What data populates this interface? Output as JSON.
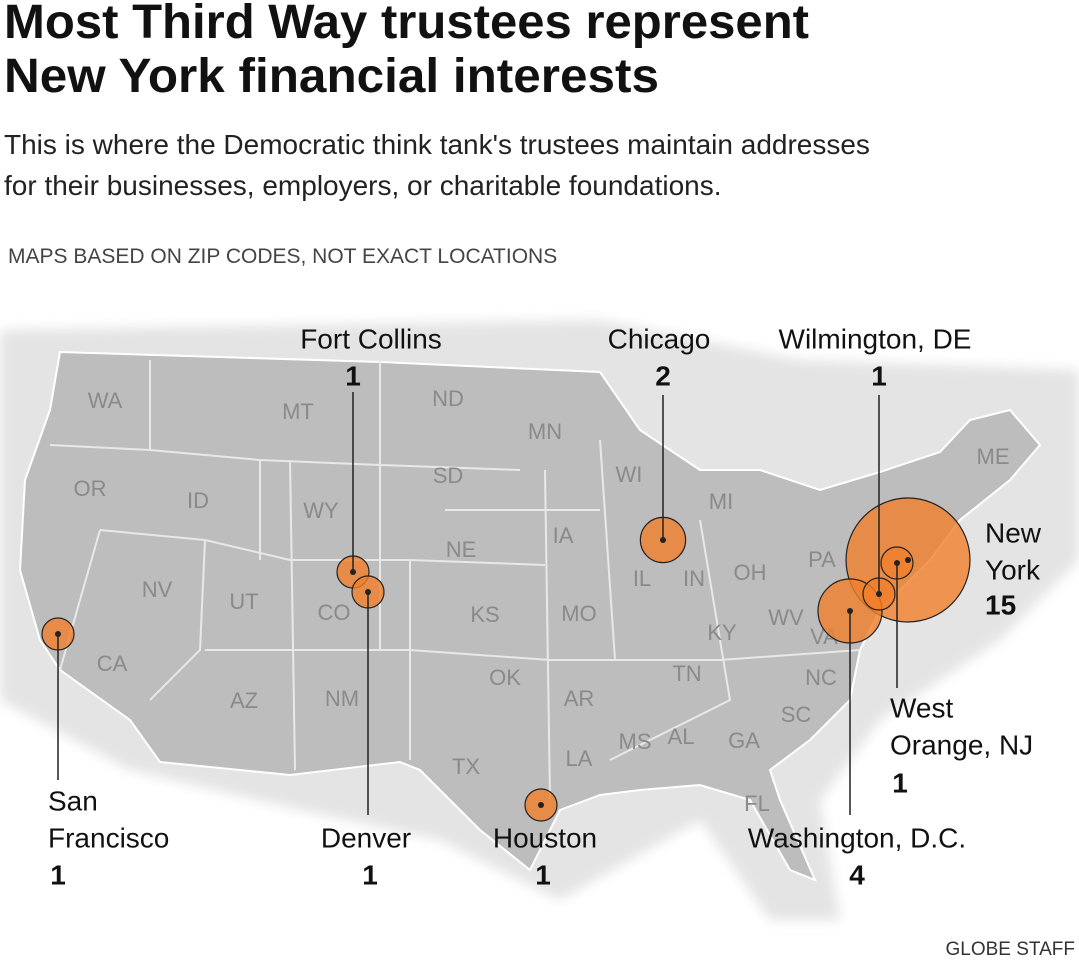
{
  "title": [
    "Most Third Way trustees represent",
    "New York financial interests"
  ],
  "subtitle": [
    "This is where the Democratic think tank's trustees maintain addresses",
    "for their businesses, employers, or charitable foundations."
  ],
  "note": "MAPS BASED ON ZIP CODES, NOT EXACT LOCATIONS",
  "credit": "GLOBE STAFF",
  "states": [
    "WA",
    "OR",
    "CA",
    "ID",
    "NV",
    "MT",
    "WY",
    "UT",
    "AZ",
    "CO",
    "NM",
    "ND",
    "SD",
    "NE",
    "KS",
    "OK",
    "TX",
    "MN",
    "IA",
    "MO",
    "AR",
    "LA",
    "WI",
    "IL",
    "MI",
    "IN",
    "OH",
    "KY",
    "TN",
    "MS",
    "AL",
    "GA",
    "FL",
    "SC",
    "NC",
    "VA",
    "WV",
    "PA",
    "ME"
  ],
  "cities": [
    {
      "label": [
        "San",
        "Francisco"
      ],
      "count": 1
    },
    {
      "label": [
        "Fort Collins"
      ],
      "count": 1
    },
    {
      "label": [
        "Denver"
      ],
      "count": 1
    },
    {
      "label": [
        "Chicago"
      ],
      "count": 2
    },
    {
      "label": [
        "Houston"
      ],
      "count": 1
    },
    {
      "label": [
        "Wilmington, DE"
      ],
      "count": 1
    },
    {
      "label": [
        "Washington, D.C."
      ],
      "count": 4
    },
    {
      "label": [
        "New",
        "York"
      ],
      "count": 15
    },
    {
      "label": [
        "West",
        "Orange, NJ"
      ],
      "count": 1
    }
  ],
  "bubble_color": "#f07f2a"
}
